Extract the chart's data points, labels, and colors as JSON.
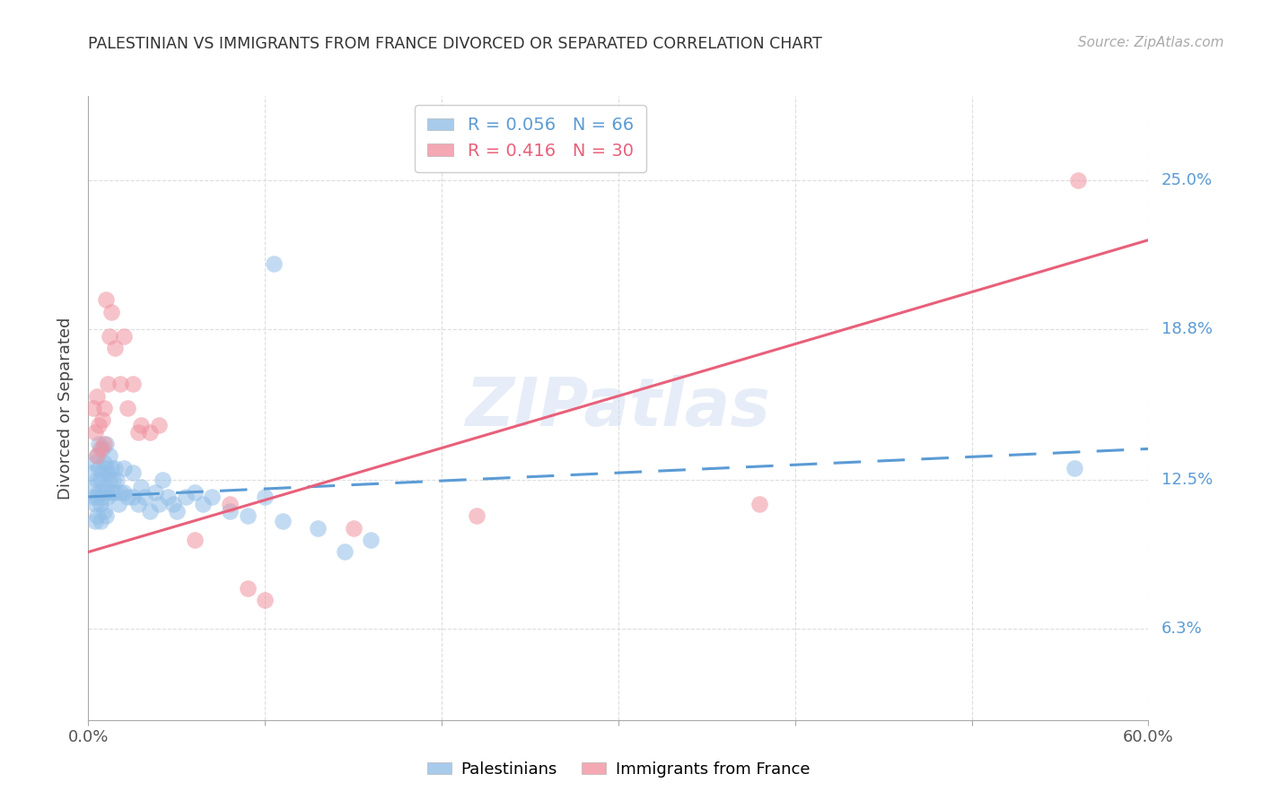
{
  "title": "PALESTINIAN VS IMMIGRANTS FROM FRANCE DIVORCED OR SEPARATED CORRELATION CHART",
  "source_text": "Source: ZipAtlas.com",
  "ylabel": "Divorced or Separated",
  "xmin": 0.0,
  "xmax": 0.6,
  "ymin": 0.025,
  "ymax": 0.285,
  "yticks": [
    0.063,
    0.125,
    0.188,
    0.25
  ],
  "ytick_labels": [
    "6.3%",
    "12.5%",
    "18.8%",
    "25.0%"
  ],
  "xtick_positions": [
    0.0,
    0.1,
    0.2,
    0.3,
    0.4,
    0.5,
    0.6
  ],
  "xtick_labels": [
    "0.0%",
    "",
    "",
    "",
    "",
    "",
    "60.0%"
  ],
  "blue_color": "#92bfe8",
  "pink_color": "#f093a0",
  "blue_line_color": "#5b9bd5",
  "pink_line_color": "#e8607a",
  "watermark": "ZIPatlas",
  "blue_R": 0.056,
  "blue_N": 66,
  "pink_R": 0.416,
  "pink_N": 30,
  "blue_scatter_x": [
    0.002,
    0.003,
    0.003,
    0.004,
    0.004,
    0.004,
    0.005,
    0.005,
    0.005,
    0.005,
    0.006,
    0.006,
    0.006,
    0.007,
    0.007,
    0.007,
    0.008,
    0.008,
    0.008,
    0.009,
    0.009,
    0.009,
    0.01,
    0.01,
    0.01,
    0.01,
    0.011,
    0.011,
    0.012,
    0.012,
    0.013,
    0.013,
    0.014,
    0.015,
    0.015,
    0.016,
    0.017,
    0.018,
    0.02,
    0.02,
    0.022,
    0.025,
    0.025,
    0.028,
    0.03,
    0.032,
    0.035,
    0.038,
    0.04,
    0.042,
    0.045,
    0.048,
    0.05,
    0.055,
    0.06,
    0.065,
    0.07,
    0.08,
    0.09,
    0.1,
    0.11,
    0.13,
    0.145,
    0.16,
    0.105,
    0.558
  ],
  "blue_scatter_y": [
    0.128,
    0.122,
    0.118,
    0.132,
    0.115,
    0.108,
    0.135,
    0.125,
    0.118,
    0.11,
    0.14,
    0.13,
    0.12,
    0.125,
    0.115,
    0.108,
    0.138,
    0.128,
    0.118,
    0.132,
    0.122,
    0.112,
    0.14,
    0.13,
    0.12,
    0.11,
    0.128,
    0.118,
    0.135,
    0.125,
    0.13,
    0.12,
    0.125,
    0.13,
    0.12,
    0.125,
    0.115,
    0.12,
    0.13,
    0.12,
    0.118,
    0.128,
    0.118,
    0.115,
    0.122,
    0.118,
    0.112,
    0.12,
    0.115,
    0.125,
    0.118,
    0.115,
    0.112,
    0.118,
    0.12,
    0.115,
    0.118,
    0.112,
    0.11,
    0.118,
    0.108,
    0.105,
    0.095,
    0.1,
    0.215,
    0.13
  ],
  "pink_scatter_x": [
    0.003,
    0.004,
    0.005,
    0.005,
    0.006,
    0.007,
    0.008,
    0.009,
    0.009,
    0.01,
    0.011,
    0.012,
    0.013,
    0.015,
    0.018,
    0.02,
    0.022,
    0.025,
    0.028,
    0.03,
    0.035,
    0.04,
    0.06,
    0.08,
    0.09,
    0.1,
    0.15,
    0.22,
    0.38,
    0.56
  ],
  "pink_scatter_y": [
    0.155,
    0.145,
    0.16,
    0.135,
    0.148,
    0.138,
    0.15,
    0.14,
    0.155,
    0.2,
    0.165,
    0.185,
    0.195,
    0.18,
    0.165,
    0.185,
    0.155,
    0.165,
    0.145,
    0.148,
    0.145,
    0.148,
    0.1,
    0.115,
    0.08,
    0.075,
    0.105,
    0.11,
    0.115,
    0.25
  ],
  "blue_line_x": [
    0.0,
    0.6
  ],
  "blue_line_y": [
    0.118,
    0.138
  ],
  "pink_line_x": [
    0.0,
    0.6
  ],
  "pink_line_y": [
    0.095,
    0.225
  ]
}
